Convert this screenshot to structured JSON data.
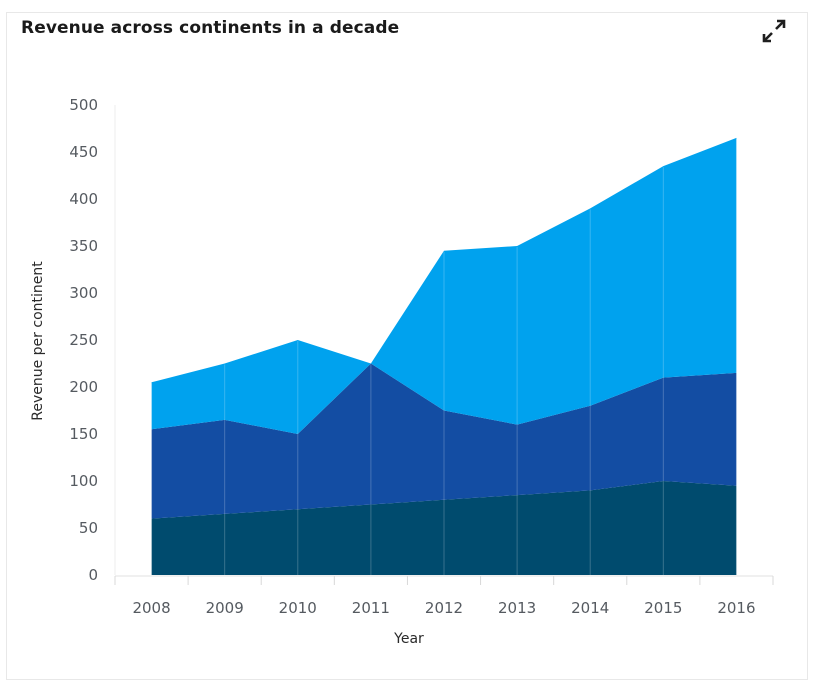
{
  "card": {
    "title": "Revenue across continents in a decade",
    "expand_icon": "expand-arrows-icon"
  },
  "chart_data": {
    "type": "area",
    "stacked": true,
    "title": "Revenue across continents in a decade",
    "xlabel": "Year",
    "ylabel": "Revenue per continent",
    "categories": [
      "2008",
      "2009",
      "2010",
      "2011",
      "2012",
      "2013",
      "2014",
      "2015",
      "2016"
    ],
    "ylim": [
      0,
      500
    ],
    "yticks": [
      "0",
      "50",
      "100",
      "150",
      "200",
      "250",
      "300",
      "350",
      "400",
      "450",
      "500"
    ],
    "grid": false,
    "legend": "none",
    "series": [
      {
        "id": "series-1",
        "color": "#004B6E",
        "values": [
          60,
          65,
          70,
          75,
          80,
          85,
          90,
          100,
          95
        ]
      },
      {
        "id": "series-2",
        "color": "#134DA3",
        "values": [
          95,
          100,
          80,
          150,
          95,
          75,
          90,
          110,
          120
        ]
      },
      {
        "id": "series-3",
        "color": "#00A2EE",
        "values": [
          50,
          60,
          100,
          0,
          170,
          190,
          210,
          225,
          250
        ]
      }
    ]
  }
}
